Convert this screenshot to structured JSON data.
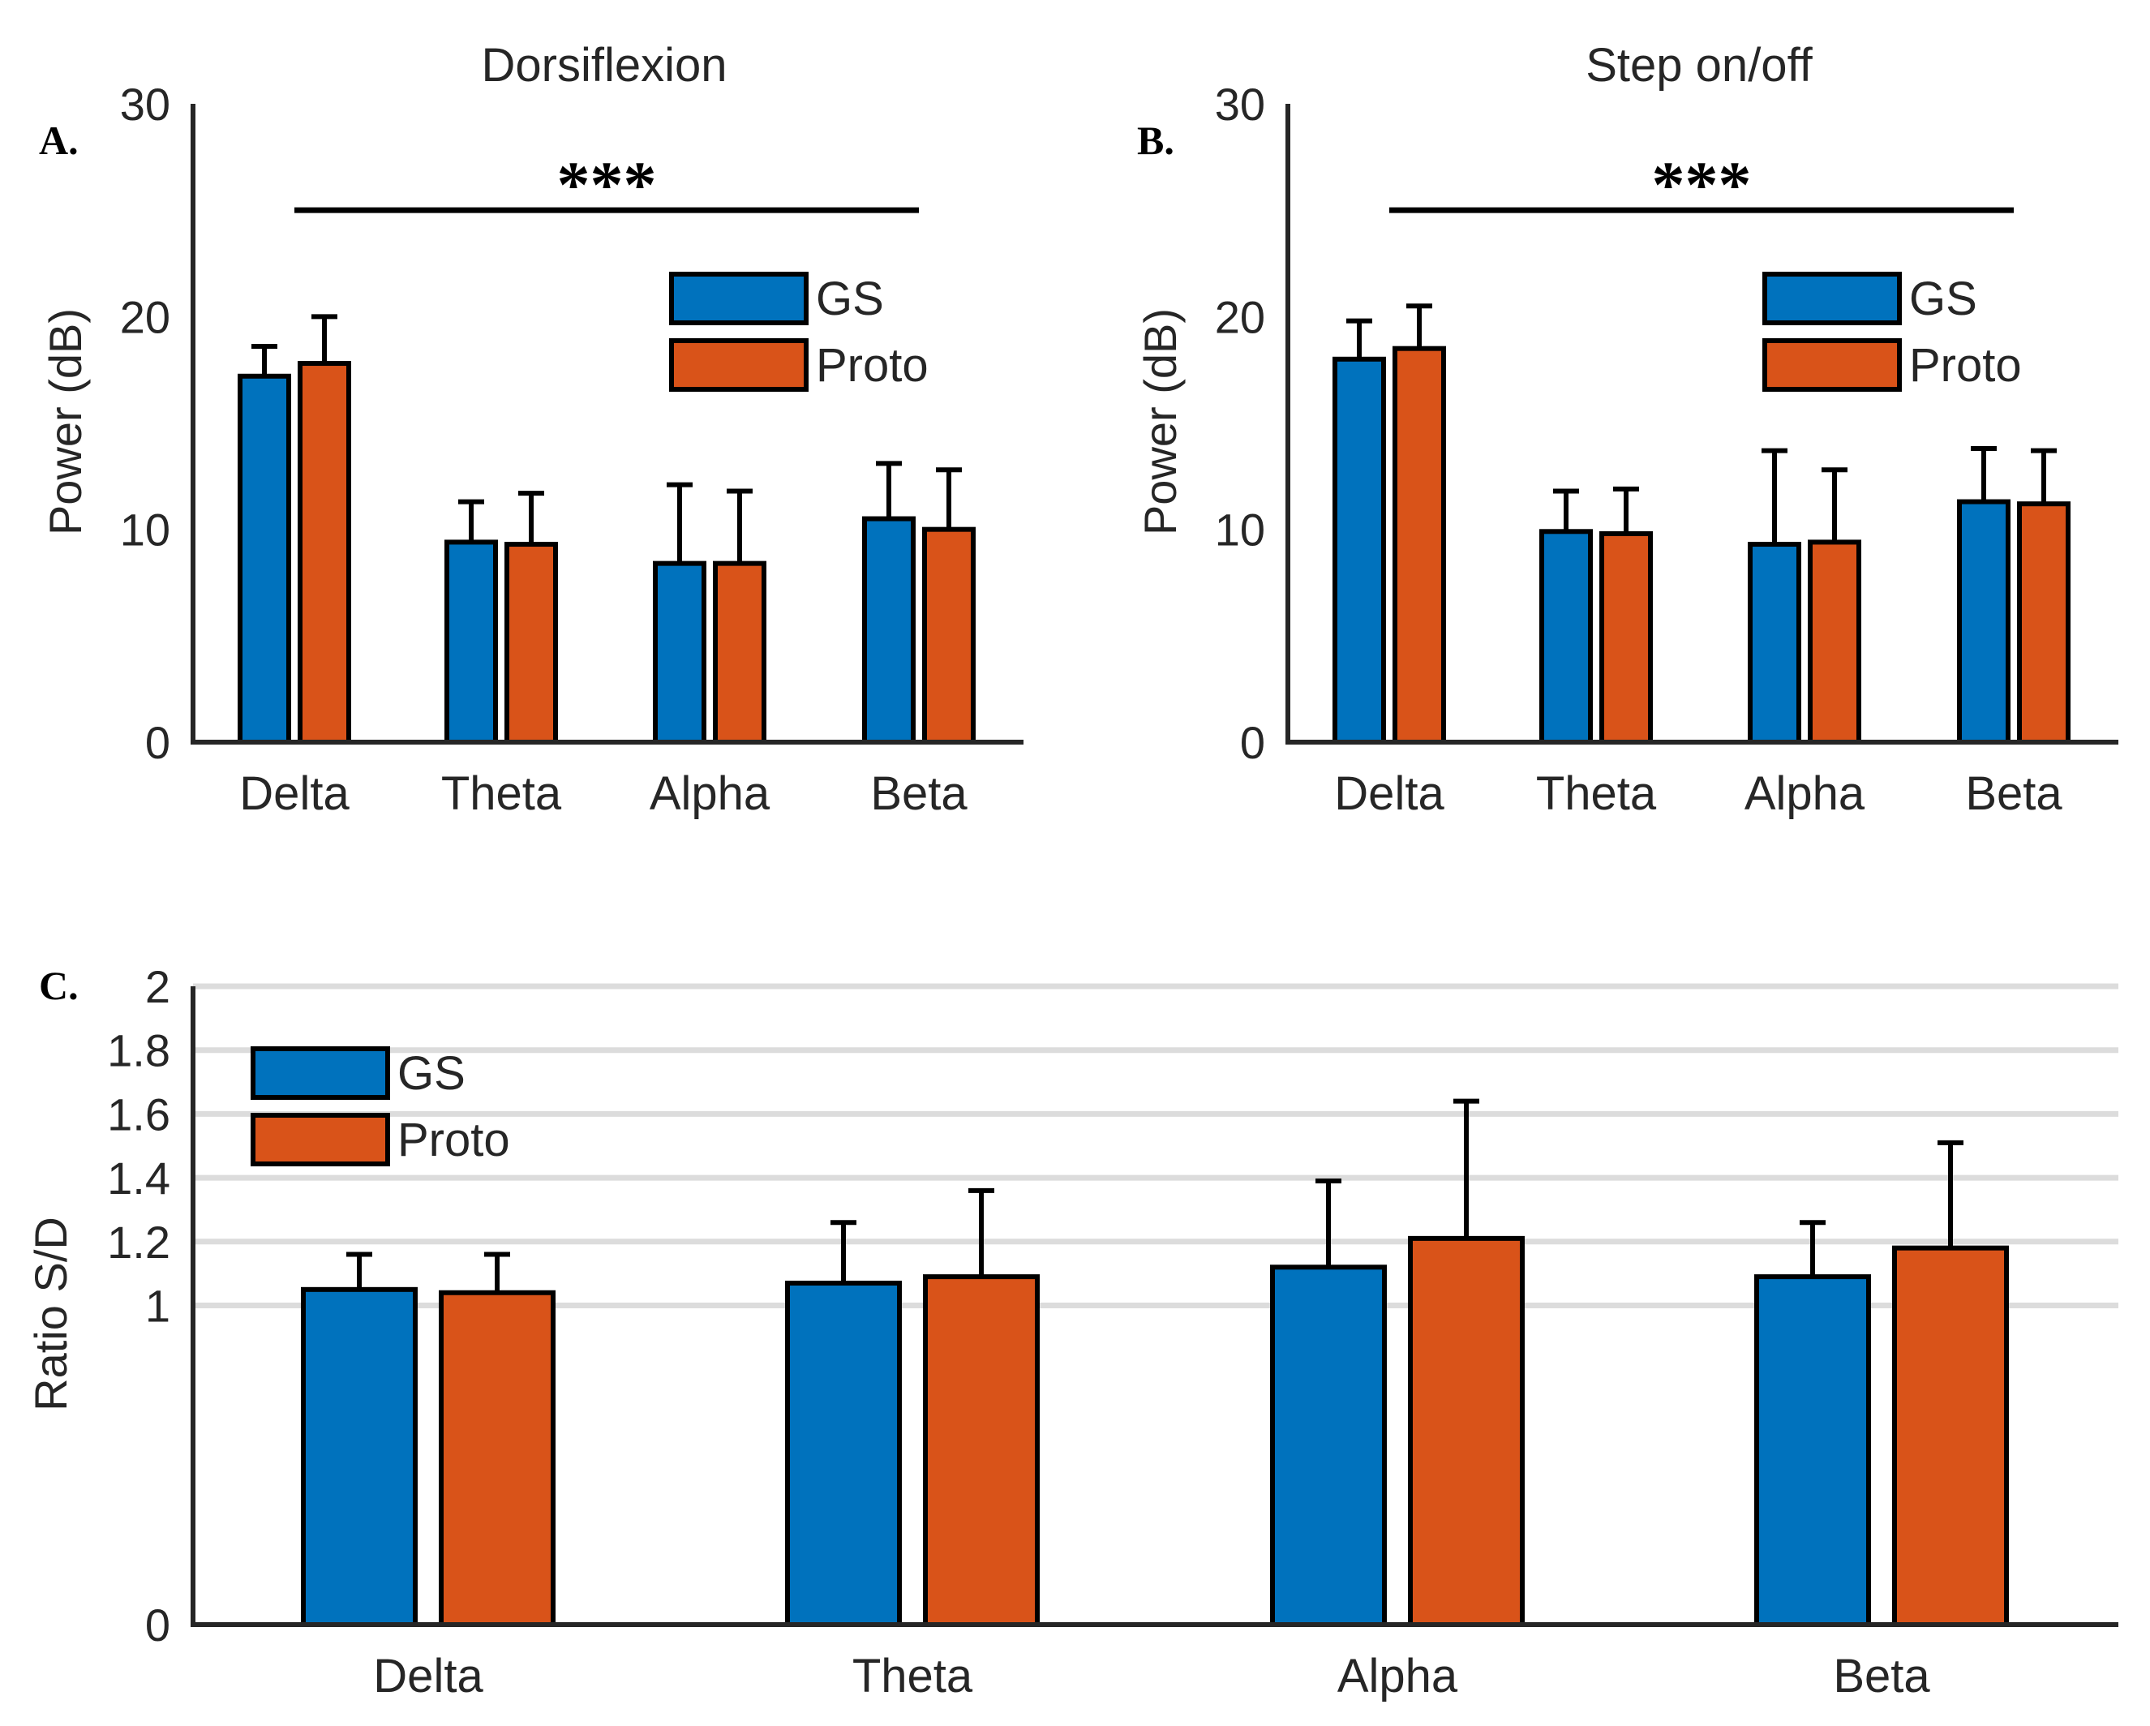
{
  "colors": {
    "gs": "#0072BD",
    "proto": "#D95319",
    "axis": "#262626",
    "grid": "#dcdcdc",
    "edge": "#000000"
  },
  "chart_data": [
    {
      "panel_label": "A.",
      "type": "bar",
      "title": "Dorsiflexion",
      "xlabel": "",
      "ylabel": "Power (dB)",
      "ylim": [
        0,
        30
      ],
      "yticks": [
        "0",
        "10",
        "20",
        "30"
      ],
      "grid": false,
      "legend_position": "upper-right",
      "categories": [
        "Delta",
        "Theta",
        "Alpha",
        "Beta"
      ],
      "series": [
        {
          "name": "GS",
          "color": "#0072BD",
          "values": [
            17.2,
            9.4,
            8.4,
            10.5
          ],
          "errors": [
            1.4,
            1.9,
            3.7,
            2.6
          ]
        },
        {
          "name": "Proto",
          "color": "#D95319",
          "values": [
            17.8,
            9.3,
            8.4,
            10.0
          ],
          "errors": [
            2.2,
            2.4,
            3.4,
            2.8
          ]
        }
      ],
      "significance": {
        "label": "***",
        "from": "Delta",
        "to": "Beta",
        "y": 25
      }
    },
    {
      "panel_label": "B.",
      "type": "bar",
      "title": "Step on/off",
      "xlabel": "",
      "ylabel": "Power (dB)",
      "ylim": [
        0,
        30
      ],
      "yticks": [
        "0",
        "10",
        "20",
        "30"
      ],
      "grid": false,
      "legend_position": "upper-right",
      "categories": [
        "Delta",
        "Theta",
        "Alpha",
        "Beta"
      ],
      "series": [
        {
          "name": "GS",
          "color": "#0072BD",
          "values": [
            18.0,
            9.9,
            9.3,
            11.3
          ],
          "errors": [
            1.8,
            1.9,
            4.4,
            2.5
          ]
        },
        {
          "name": "Proto",
          "color": "#D95319",
          "values": [
            18.5,
            9.8,
            9.4,
            11.2
          ],
          "errors": [
            2.0,
            2.1,
            3.4,
            2.5
          ]
        }
      ],
      "significance": {
        "label": "***",
        "from": "Delta",
        "to": "Beta",
        "y": 25
      }
    },
    {
      "panel_label": "C.",
      "type": "bar",
      "title": "",
      "xlabel": "",
      "ylabel": "Ratio S/D",
      "ylim": [
        0,
        2
      ],
      "yticks": [
        "0",
        "1",
        "1.2",
        "1.4",
        "1.6",
        "1.8",
        "2"
      ],
      "grid": true,
      "legend_position": "upper-left",
      "categories": [
        "Delta",
        "Theta",
        "Alpha",
        "Beta"
      ],
      "series": [
        {
          "name": "GS",
          "color": "#0072BD",
          "values": [
            1.05,
            1.07,
            1.12,
            1.09
          ],
          "errors": [
            0.11,
            0.19,
            0.27,
            0.17
          ]
        },
        {
          "name": "Proto",
          "color": "#D95319",
          "values": [
            1.04,
            1.09,
            1.21,
            1.18
          ],
          "errors": [
            0.12,
            0.27,
            0.43,
            0.33
          ]
        }
      ]
    }
  ]
}
